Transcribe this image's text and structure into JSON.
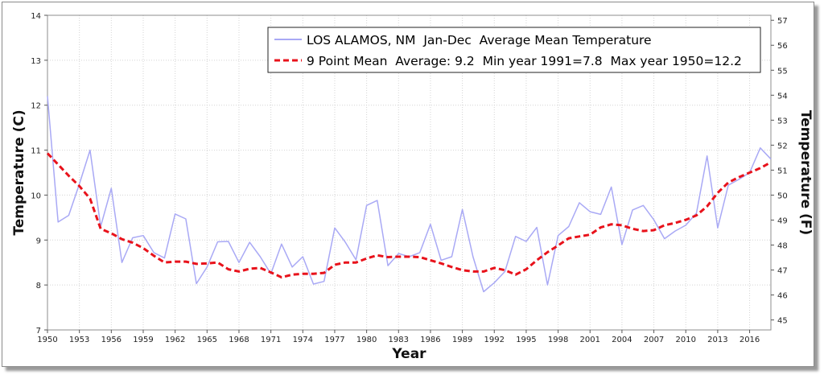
{
  "chart_data": {
    "type": "line",
    "x": [
      1950,
      1951,
      1952,
      1953,
      1954,
      1955,
      1956,
      1957,
      1958,
      1959,
      1960,
      1961,
      1962,
      1963,
      1964,
      1965,
      1966,
      1967,
      1968,
      1969,
      1970,
      1971,
      1972,
      1973,
      1974,
      1975,
      1976,
      1977,
      1978,
      1979,
      1980,
      1981,
      1982,
      1983,
      1984,
      1985,
      1986,
      1987,
      1988,
      1989,
      1990,
      1991,
      1992,
      1993,
      1994,
      1995,
      1996,
      1997,
      1998,
      1999,
      2000,
      2001,
      2002,
      2003,
      2004,
      2005,
      2006,
      2007,
      2008,
      2009,
      2010,
      2011,
      2012,
      2013,
      2014,
      2015,
      2016,
      2017,
      2018
    ],
    "series": [
      {
        "name": "LOS ALAMOS, NM  Jan-Dec  Average Mean Temperature",
        "color": "#a9a9f5",
        "style": "solid",
        "values": [
          12.2,
          9.4,
          9.55,
          10.25,
          11.0,
          9.3,
          10.15,
          8.5,
          9.05,
          9.1,
          8.72,
          8.6,
          9.58,
          9.47,
          8.03,
          8.4,
          8.96,
          8.97,
          8.5,
          8.95,
          8.63,
          8.25,
          8.91,
          8.4,
          8.63,
          8.02,
          8.08,
          9.27,
          8.95,
          8.56,
          9.77,
          9.88,
          8.43,
          8.7,
          8.63,
          8.72,
          9.35,
          8.55,
          8.63,
          9.68,
          8.63,
          7.85,
          8.05,
          8.3,
          9.08,
          8.97,
          9.28,
          8.0,
          9.1,
          9.3,
          9.83,
          9.63,
          9.57,
          10.18,
          8.9,
          9.67,
          9.77,
          9.45,
          9.03,
          9.2,
          9.33,
          9.6,
          10.87,
          9.27,
          10.22,
          10.35,
          10.5,
          11.05,
          10.8
        ]
      },
      {
        "name": "9 Point Mean  Average: 9.2  Min year 1991=7.8  Max year 1950=12.2",
        "color": "#e8121b",
        "style": "dashed",
        "values": [
          10.93,
          10.68,
          10.43,
          10.2,
          9.92,
          9.25,
          9.15,
          9.02,
          8.94,
          8.82,
          8.65,
          8.5,
          8.52,
          8.52,
          8.47,
          8.48,
          8.5,
          8.35,
          8.3,
          8.36,
          8.38,
          8.28,
          8.17,
          8.23,
          8.25,
          8.25,
          8.27,
          8.45,
          8.5,
          8.5,
          8.59,
          8.66,
          8.62,
          8.63,
          8.63,
          8.62,
          8.55,
          8.48,
          8.4,
          8.33,
          8.3,
          8.3,
          8.38,
          8.33,
          8.23,
          8.35,
          8.55,
          8.73,
          8.88,
          9.04,
          9.08,
          9.12,
          9.28,
          9.35,
          9.33,
          9.25,
          9.2,
          9.22,
          9.33,
          9.38,
          9.45,
          9.55,
          9.75,
          10.05,
          10.28,
          10.4,
          10.5,
          10.6,
          10.73
        ]
      }
    ],
    "xlabel": "Year",
    "ylabel": "Temperature (C)",
    "ylabel_right": "Temperature (F)",
    "xlim": [
      1950,
      2018
    ],
    "ylim": [
      7,
      14
    ],
    "ylim_right": [
      44.6,
      57.2
    ],
    "x_ticks": [
      1950,
      1953,
      1956,
      1959,
      1962,
      1965,
      1968,
      1971,
      1974,
      1977,
      1980,
      1983,
      1986,
      1989,
      1992,
      1995,
      1998,
      2001,
      2004,
      2007,
      2010,
      2013,
      2016
    ],
    "y_ticks": [
      7,
      8,
      9,
      10,
      11,
      12,
      13,
      14
    ],
    "y_ticks_right": [
      45,
      46,
      47,
      48,
      49,
      50,
      51,
      52,
      53,
      54,
      55,
      56,
      57
    ],
    "grid": true,
    "legend_position": "top-right"
  }
}
